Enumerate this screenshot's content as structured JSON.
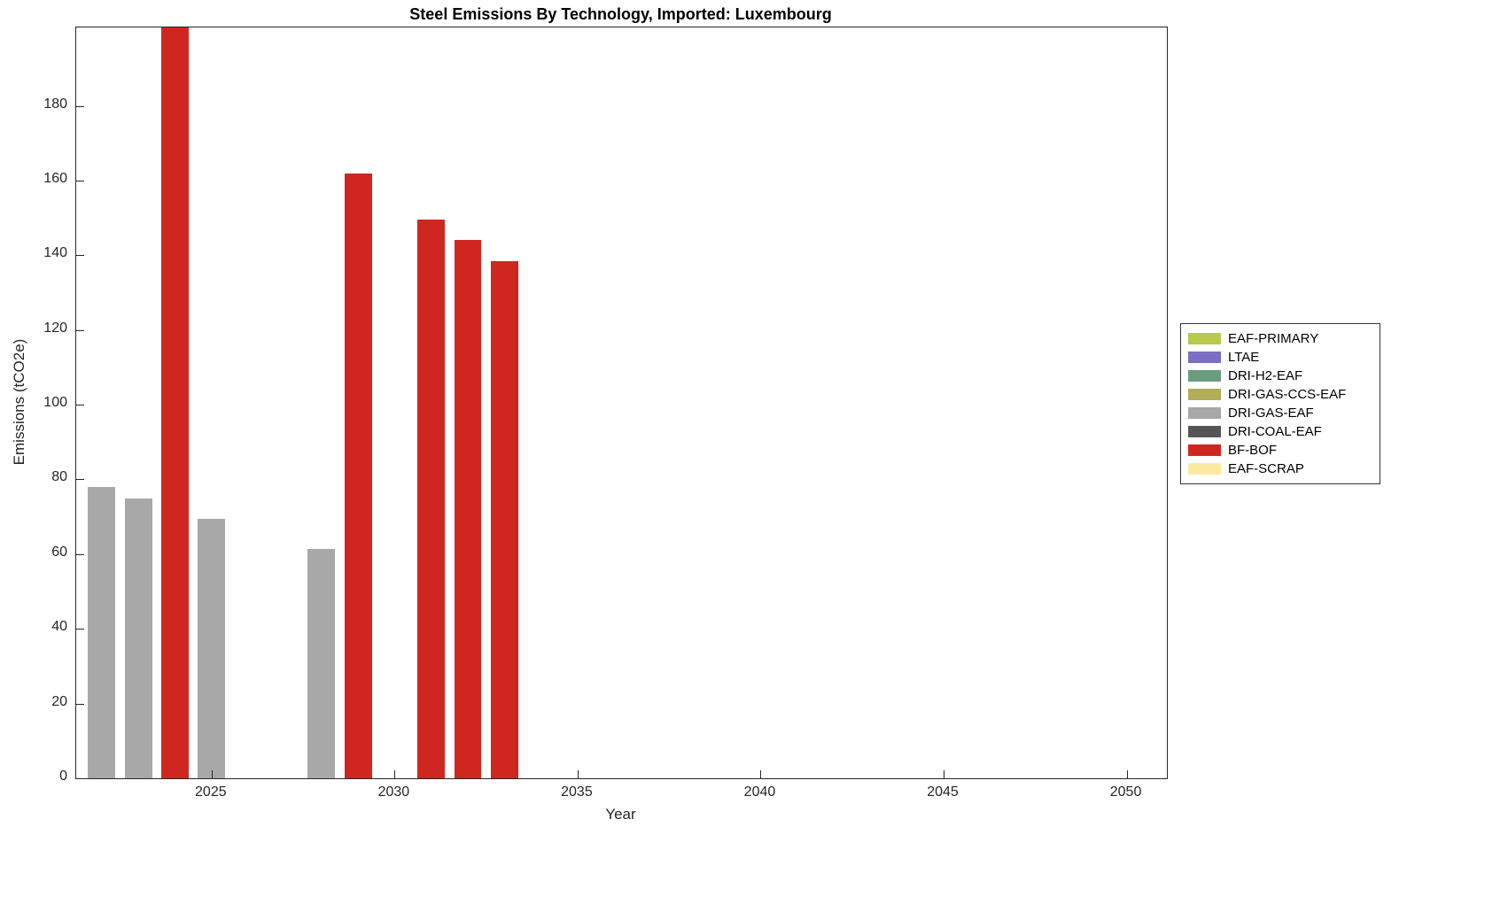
{
  "title": "Steel Emissions By Technology, Imported: Luxembourg",
  "chart_data": {
    "type": "bar",
    "title": "Steel Emissions By Technology, Imported: Luxembourg",
    "xlabel": "Year",
    "ylabel": "Emissions (tCO2e)",
    "xlim": [
      2021.3,
      2051.1
    ],
    "ylim": [
      0,
      201
    ],
    "x_ticks": [
      2025,
      2030,
      2035,
      2040,
      2045,
      2050
    ],
    "y_ticks": [
      0,
      20,
      40,
      60,
      80,
      100,
      120,
      140,
      160,
      180
    ],
    "grid": false,
    "legend_position": "outside-right",
    "bar_width_years": 0.75,
    "series": [
      {
        "name": "EAF-PRIMARY",
        "color": "#b8c94e",
        "points": []
      },
      {
        "name": "LTAE",
        "color": "#7b6fc4",
        "points": []
      },
      {
        "name": "DRI-H2-EAF",
        "color": "#6a9d7d",
        "points": []
      },
      {
        "name": "DRI-GAS-CCS-EAF",
        "color": "#b2ad57",
        "points": []
      },
      {
        "name": "DRI-GAS-EAF",
        "color": "#a8a8a8",
        "points": [
          {
            "x": 2022,
            "y": 78
          },
          {
            "x": 2023,
            "y": 75
          },
          {
            "x": 2025,
            "y": 69.5
          },
          {
            "x": 2028,
            "y": 61.5
          }
        ]
      },
      {
        "name": "DRI-COAL-EAF",
        "color": "#555555",
        "points": []
      },
      {
        "name": "BF-BOF",
        "color": "#d02620",
        "points": [
          {
            "x": 2024,
            "y": 201,
            "clipped": true
          },
          {
            "x": 2029,
            "y": 162
          },
          {
            "x": 2031,
            "y": 149.5
          },
          {
            "x": 2032,
            "y": 144
          },
          {
            "x": 2033,
            "y": 138.5
          }
        ]
      },
      {
        "name": "EAF-SCRAP",
        "color": "#fce9a0",
        "points": []
      }
    ]
  }
}
